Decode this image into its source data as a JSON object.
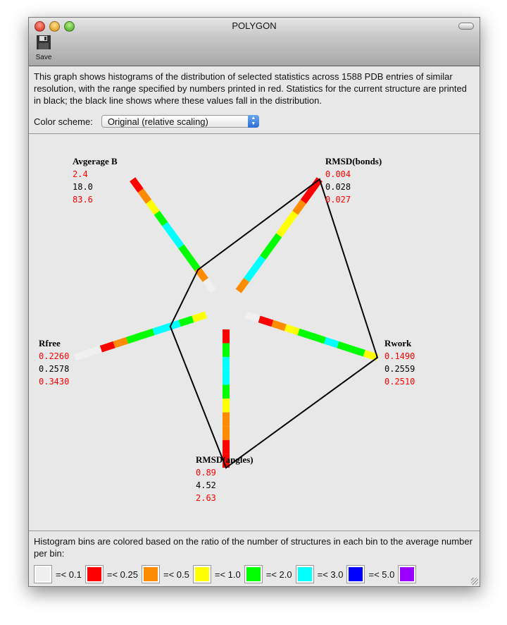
{
  "window": {
    "title": "POLYGON"
  },
  "toolbar": {
    "save_label": "Save",
    "save_icon": "floppy-disk-icon"
  },
  "description": "This graph shows histograms of the distribution of selected statistics across 1588 PDB entries of similar resolution, with the range specified by numbers printed in red.  Statistics for the current structure are printed in black; the black line shows where these values fall in the distribution.",
  "color_scheme": {
    "label": "Color scheme:",
    "selected": "Original (relative scaling)"
  },
  "colors": {
    "white": "#f0f0f0",
    "red": "#ff0000",
    "orange": "#ff8c00",
    "yellow": "#ffff00",
    "green": "#00ff00",
    "cyan": "#00ffff",
    "blue": "#0000ff",
    "purple": "#9900ff"
  },
  "chart_data": {
    "type": "radar-histogram",
    "axes": [
      {
        "name": "Avgerage B",
        "min": "2.4",
        "current": "18.0",
        "max": "83.6",
        "bins": [
          "white",
          "orange",
          "green",
          "green",
          "cyan",
          "cyan",
          "green",
          "yellow",
          "orange",
          "red"
        ]
      },
      {
        "name": "RMSD(bonds)",
        "min": "0.004",
        "current": "0.028",
        "max": "0.027",
        "bins": [
          "orange",
          "cyan",
          "cyan",
          "green",
          "green",
          "yellow",
          "yellow",
          "orange",
          "red",
          "red"
        ]
      },
      {
        "name": "Rwork",
        "min": "0.1490",
        "current": "0.2559",
        "max": "0.2510",
        "bins": [
          "white",
          "red",
          "orange",
          "yellow",
          "green",
          "green",
          "cyan",
          "green",
          "green",
          "yellow"
        ]
      },
      {
        "name": "RMSD(angles)",
        "min": "0.89",
        "current": "4.52",
        "max": "2.63",
        "bins": [
          "red",
          "green",
          "cyan",
          "cyan",
          "green",
          "yellow",
          "orange",
          "orange",
          "red",
          "red"
        ]
      },
      {
        "name": "Rfree",
        "min": "0.2260",
        "current": "0.2578",
        "max": "0.3430",
        "bins": [
          "yellow",
          "green",
          "cyan",
          "cyan",
          "green",
          "green",
          "orange",
          "red",
          "white",
          "white"
        ]
      }
    ]
  },
  "legend": {
    "text": "Histogram bins are colored based on the ratio of the number of structures in each bin to the average number per bin:",
    "items": [
      {
        "color": "white",
        "label": "=< 0.1"
      },
      {
        "color": "red",
        "label": "=< 0.25"
      },
      {
        "color": "orange",
        "label": "=< 0.5"
      },
      {
        "color": "yellow",
        "label": "=< 1.0"
      },
      {
        "color": "green",
        "label": "=< 2.0"
      },
      {
        "color": "cyan",
        "label": "=< 3.0"
      },
      {
        "color": "blue",
        "label": "=< 5.0"
      },
      {
        "color": "purple",
        "label": ""
      }
    ]
  }
}
